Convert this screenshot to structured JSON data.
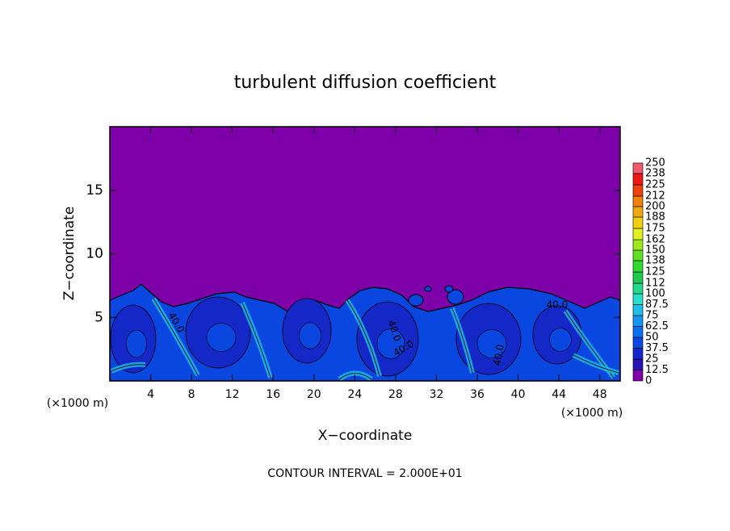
{
  "chart_data": {
    "type": "contour",
    "title": "turbulent diffusion coefficient",
    "x_label": "X−coordinate",
    "y_label": "Z−coordinate",
    "x_unit_left": "(×1000 m)",
    "x_unit_right": "(×1000 m)",
    "footer": "CONTOUR INTERVAL = 2.000E+01",
    "xlim": [
      0,
      50
    ],
    "xticks": [
      4,
      8,
      12,
      16,
      20,
      24,
      28,
      32,
      36,
      40,
      44,
      48
    ],
    "ylim": [
      0,
      20
    ],
    "yticks": [
      5,
      10,
      15
    ],
    "contour_labels": [
      {
        "value": 40,
        "label": "40.0"
      },
      {
        "value": 40,
        "label": "40.0"
      },
      {
        "value": 40,
        "label": "40.0"
      },
      {
        "value": 40,
        "label": "40.0"
      },
      {
        "value": 40,
        "label": "40.0"
      }
    ],
    "colorbar": {
      "levels": [
        0,
        12.5,
        25,
        37.5,
        50,
        62.5,
        75,
        87.5,
        100,
        112,
        125,
        138,
        150,
        162,
        175,
        188,
        200,
        212,
        225,
        238,
        250
      ],
      "colors": [
        "#7d00a8",
        "#2a12b4",
        "#1428c8",
        "#0a46e0",
        "#0a6ef0",
        "#1496f0",
        "#1ebee6",
        "#28e0c8",
        "#20d890",
        "#20c850",
        "#30d830",
        "#60e020",
        "#a0e820",
        "#e0f020",
        "#f0d010",
        "#f0a810",
        "#f08010",
        "#f04010",
        "#f01818",
        "#f05a6a"
      ]
    }
  }
}
